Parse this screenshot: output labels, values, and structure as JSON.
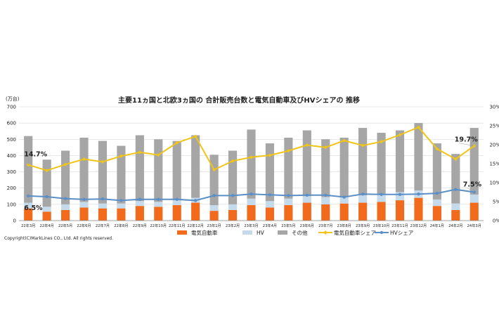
{
  "chart_data": {
    "type": "bar",
    "title": "主要11ヵ国と北欧3ヵ国の 合計販売台数と電気自動車及びHVシェアの 推移",
    "ylabel_left": "(万台)",
    "ylim_left": [
      0,
      700
    ],
    "yticks_left": [
      "0",
      "100",
      "200",
      "300",
      "400",
      "500",
      "600",
      "700"
    ],
    "ylim_right": [
      0,
      30
    ],
    "yticks_right": [
      "0%",
      "5%",
      "10%",
      "15%",
      "20%",
      "25%",
      "30%"
    ],
    "categories": [
      "22年3月",
      "22年4月",
      "22年5月",
      "22年6月",
      "22年7月",
      "22年8月",
      "22年9月",
      "22年10月",
      "22年11月",
      "22年12月",
      "23年1月",
      "23年2月",
      "23年3月",
      "23年4月",
      "23年5月",
      "23年6月",
      "23年7月",
      "23年8月",
      "23年9月",
      "23年10月",
      "23年11月",
      "23年12月",
      "24年1月",
      "24年2月",
      "24年3月"
    ],
    "stack_series": [
      {
        "name": "電気自動車",
        "color": "#f26a1b",
        "values": [
          75,
          55,
          65,
          80,
          75,
          75,
          90,
          85,
          95,
          110,
          60,
          65,
          95,
          80,
          95,
          110,
          100,
          105,
          110,
          115,
          125,
          140,
          90,
          65,
          110
        ]
      },
      {
        "name": "HV",
        "color": "#c5daea",
        "values": [
          35,
          30,
          35,
          35,
          30,
          30,
          30,
          30,
          30,
          30,
          35,
          35,
          40,
          40,
          40,
          40,
          45,
          40,
          45,
          45,
          50,
          45,
          40,
          40,
          50
        ]
      },
      {
        "name": "その他",
        "color": "#a6a6a6",
        "values": [
          410,
          290,
          330,
          395,
          385,
          355,
          405,
          385,
          365,
          385,
          310,
          330,
          425,
          355,
          375,
          405,
          355,
          365,
          415,
          380,
          380,
          415,
          345,
          305,
          410
        ]
      }
    ],
    "line_series": [
      {
        "name": "電気自動車シェア",
        "color": "#f0c419",
        "values": [
          14.7,
          13.2,
          14.8,
          16.2,
          15.5,
          17.0,
          18.0,
          17.3,
          20.5,
          22.2,
          13.4,
          15.7,
          16.7,
          17.2,
          18.4,
          19.9,
          19.3,
          21.1,
          19.8,
          20.8,
          22.6,
          24.6,
          18.9,
          16.2,
          19.7
        ]
      },
      {
        "name": "HVシェア",
        "color": "#5b8fc7",
        "values": [
          6.5,
          6.3,
          5.8,
          5.6,
          5.7,
          5.3,
          5.6,
          5.6,
          5.6,
          5.3,
          6.6,
          6.6,
          7.0,
          6.8,
          6.6,
          6.7,
          6.7,
          6.2,
          7.0,
          6.9,
          6.9,
          7.0,
          7.2,
          8.2,
          7.5
        ]
      }
    ],
    "annotations": [
      "14.7%",
      "6.5%",
      "19.7%",
      "7.5%"
    ],
    "legend_position": "bottom",
    "grid": true
  },
  "copyright": "Copyright(C)MarkLines CO., Ltd. All rights reserved."
}
